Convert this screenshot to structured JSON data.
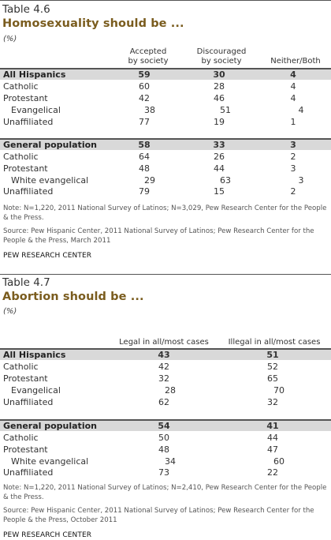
{
  "t1": {
    "label": "Table 4.6",
    "title": "Homosexuality should be ...",
    "unit": "(%)",
    "columns": [
      "Accepted\nby society",
      "Discouraged\nby society",
      "Neither/Both"
    ],
    "rows": [
      {
        "label": "All Hispanics",
        "values": [
          "59",
          "30",
          "4"
        ]
      },
      {
        "label": "Catholic",
        "values": [
          "60",
          "28",
          "4"
        ]
      },
      {
        "label": "Protestant",
        "values": [
          "42",
          "46",
          "4"
        ]
      },
      {
        "label": "Evangelical",
        "values": [
          "38",
          "51",
          "4"
        ]
      },
      {
        "label": "Unaffiliated",
        "values": [
          "77",
          "19",
          "1"
        ]
      },
      {
        "label": "General population",
        "values": [
          "58",
          "33",
          "3"
        ]
      },
      {
        "label": "Catholic",
        "values": [
          "64",
          "26",
          "2"
        ]
      },
      {
        "label": "Protestant",
        "values": [
          "48",
          "44",
          "3"
        ]
      },
      {
        "label": "White evangelical",
        "values": [
          "29",
          "63",
          "3"
        ]
      },
      {
        "label": "Unaffiliated",
        "values": [
          "79",
          "15",
          "2"
        ]
      }
    ],
    "note": "Note: N=1,220, 2011 National Survey of Latinos; N=3,029, Pew Research Center for the People & the Press.",
    "source": "Source: Pew Hispanic Center, 2011 National Survey of Latinos; Pew Research Center for the People & the Press, March 2011",
    "brand": "PEW RESEARCH CENTER"
  },
  "t2": {
    "label": "Table 4.7",
    "title": "Abortion should be ...",
    "unit": "(%)",
    "columns": [
      "Legal in all/most cases",
      "Illegal in all/most cases"
    ],
    "rows": [
      {
        "label": "All Hispanics",
        "values": [
          "43",
          "51"
        ]
      },
      {
        "label": "Catholic",
        "values": [
          "42",
          "52"
        ]
      },
      {
        "label": "Protestant",
        "values": [
          "32",
          "65"
        ]
      },
      {
        "label": "Evangelical",
        "values": [
          "28",
          "70"
        ]
      },
      {
        "label": "Unaffiliated",
        "values": [
          "62",
          "32"
        ]
      },
      {
        "label": "General population",
        "values": [
          "54",
          "41"
        ]
      },
      {
        "label": "Catholic",
        "values": [
          "50",
          "44"
        ]
      },
      {
        "label": "Protestant",
        "values": [
          "48",
          "47"
        ]
      },
      {
        "label": "White evangelical",
        "values": [
          "34",
          "60"
        ]
      },
      {
        "label": "Unaffiliated",
        "values": [
          "73",
          "22"
        ]
      }
    ],
    "note": "Note: N=1,220, 2011 National Survey of Latinos; N=2,410, Pew Research Center for the People & the Press.",
    "source": "Source: Pew Hispanic Center, 2011 National Survey of Latinos; Pew Research Center for the People & the Press, October 2011",
    "brand": "PEW RESEARCH CENTER"
  },
  "colors": {
    "title": "#7a5c1e",
    "band": "#d9d9d9",
    "rule": "#555555"
  }
}
